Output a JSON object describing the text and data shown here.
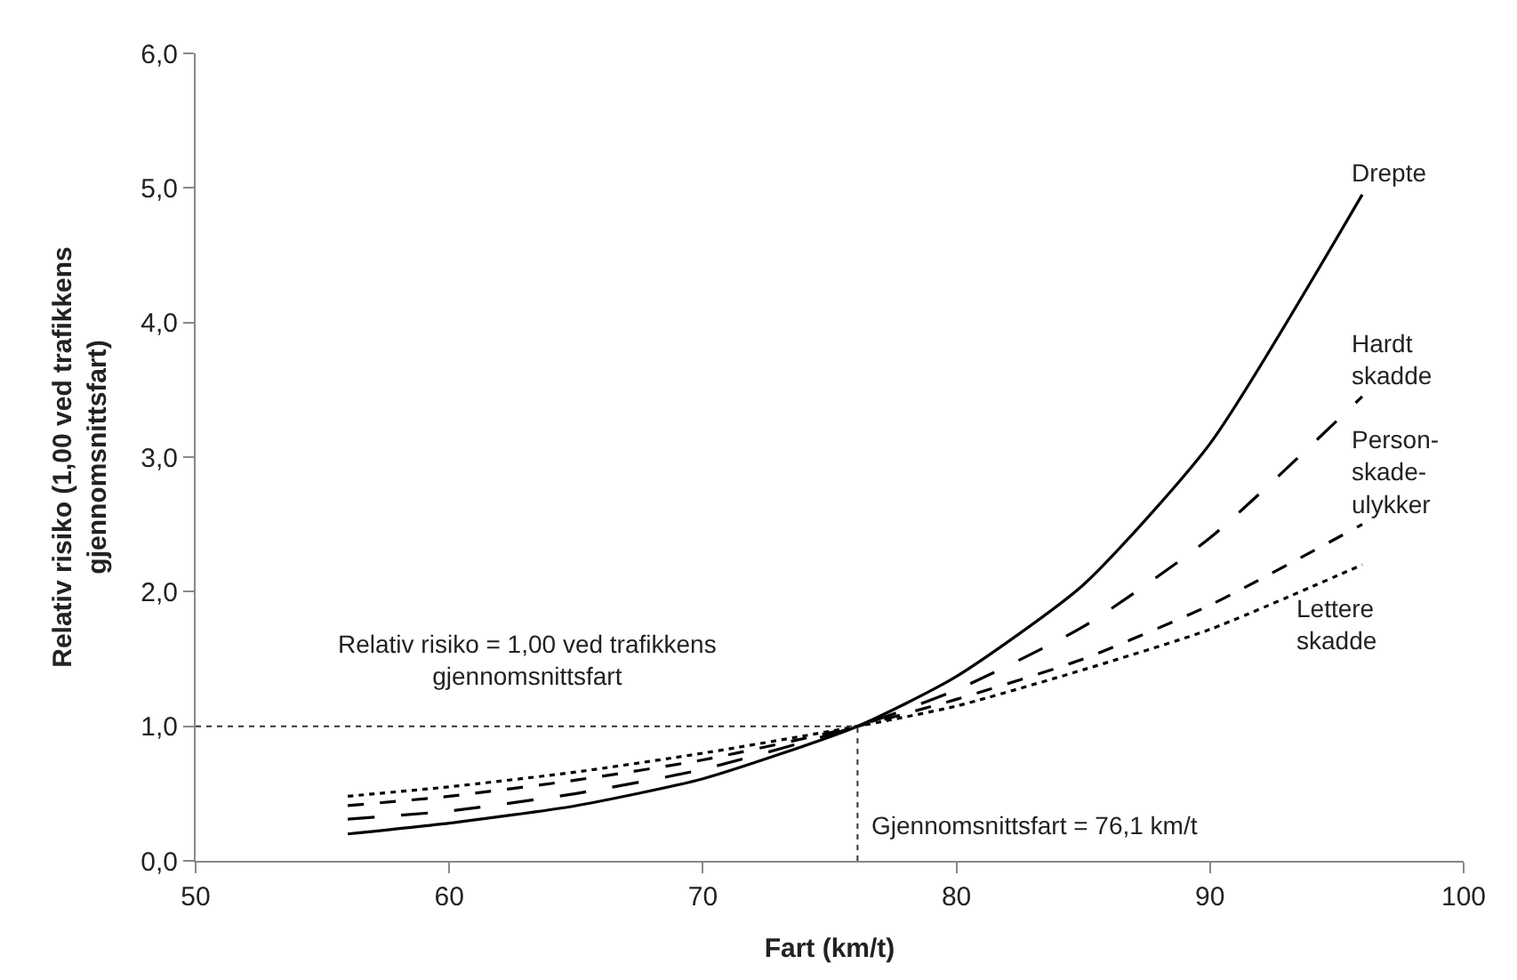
{
  "chart_data": {
    "type": "line",
    "xlabel": "Fart (km/t)",
    "ylabel": "Relativ risiko (1,00 ved trafikkens\ngjennomsnittsfart)",
    "x": [
      56,
      60,
      65,
      70,
      76.1,
      80,
      85,
      90,
      96
    ],
    "series": [
      {
        "name": "Drepte",
        "color": "#000000",
        "line_style": "solid",
        "values": [
          0.2,
          0.28,
          0.41,
          0.61,
          1.0,
          1.37,
          2.05,
          3.1,
          4.95
        ]
      },
      {
        "name": "Hardt\nskadde",
        "color": "#000000",
        "line_style": "dashed",
        "values": [
          0.31,
          0.37,
          0.5,
          0.68,
          1.0,
          1.27,
          1.74,
          2.4,
          3.45
        ]
      },
      {
        "name": "Person-\nskade-\nulykker",
        "color": "#000000",
        "line_style": "dashed",
        "values": [
          0.41,
          0.48,
          0.6,
          0.75,
          1.0,
          1.2,
          1.5,
          1.9,
          2.5
        ]
      },
      {
        "name": "Lettere\nskadde",
        "color": "#000000",
        "line_style": "dotted",
        "values": [
          0.48,
          0.55,
          0.66,
          0.8,
          1.0,
          1.15,
          1.42,
          1.72,
          2.2
        ]
      }
    ],
    "xlim": [
      50,
      100
    ],
    "xticks": [
      50,
      60,
      70,
      80,
      90,
      100
    ],
    "ylim": [
      0,
      6
    ],
    "yticks": [
      {
        "value": 0,
        "label": "0,0"
      },
      {
        "value": 1,
        "label": "1,0"
      },
      {
        "value": 2,
        "label": "2,0"
      },
      {
        "value": 3,
        "label": "3,0"
      },
      {
        "value": 4,
        "label": "4,0"
      },
      {
        "value": 5,
        "label": "5,0"
      },
      {
        "value": 6,
        "label": "6,0"
      }
    ],
    "ref_lines": [
      {
        "axis": "y",
        "value": 1,
        "label": "Relativ risiko = 1,00 ved trafikkens\ngjennomsnittsfart",
        "line_style": "dotted"
      },
      {
        "axis": "x",
        "value": 76.1,
        "label": "Gjennomsnittsfart = 76,1 km/t",
        "line_style": "dotted"
      }
    ],
    "legend": false,
    "marker": "none"
  }
}
